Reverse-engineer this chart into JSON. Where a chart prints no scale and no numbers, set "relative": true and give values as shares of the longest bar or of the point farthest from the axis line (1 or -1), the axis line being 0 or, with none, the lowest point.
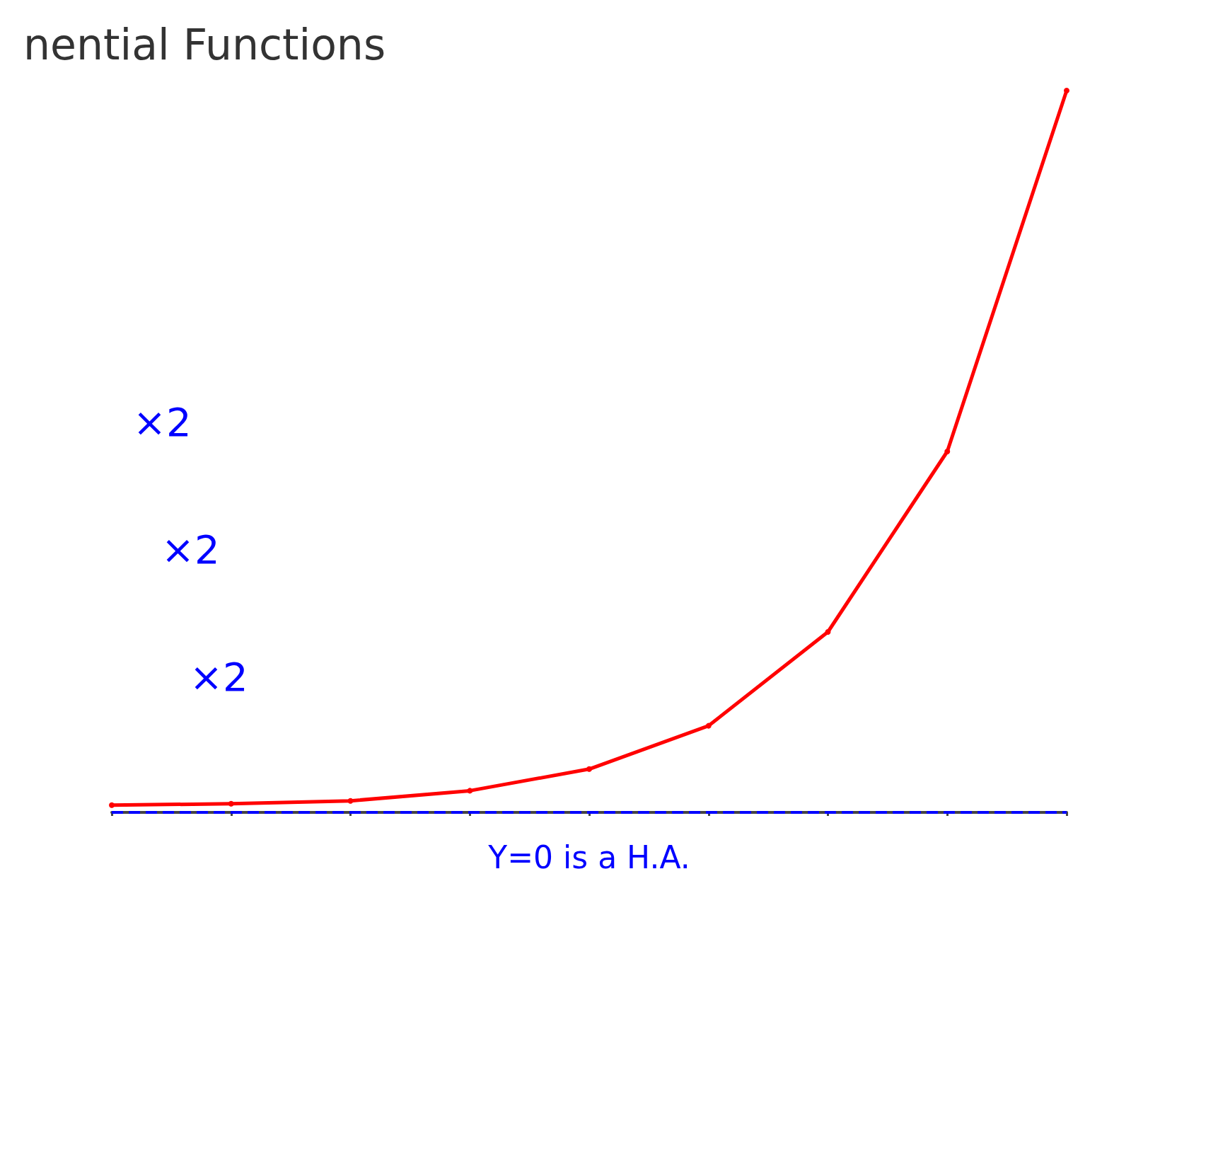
{
  "chart_data": {
    "type": "line",
    "title": "nential Functions",
    "relative": true,
    "categories": [
      null,
      null,
      null,
      null,
      null,
      null,
      null,
      null,
      null
    ],
    "series": [
      {
        "color": "#ff0000",
        "values": [
          0.01,
          0.012,
          0.016,
          0.03,
          0.06,
          0.12,
          0.25,
          0.5,
          1
        ]
      }
    ],
    "marker": "circle",
    "grid": false,
    "ref_lines": [
      {
        "axis": "y",
        "value": 0,
        "label": "Y=0 is a H.A.",
        "color": "#0000ff",
        "line_style": "dashed"
      }
    ],
    "annotations": [
      "×2",
      "×2",
      "×2"
    ]
  }
}
